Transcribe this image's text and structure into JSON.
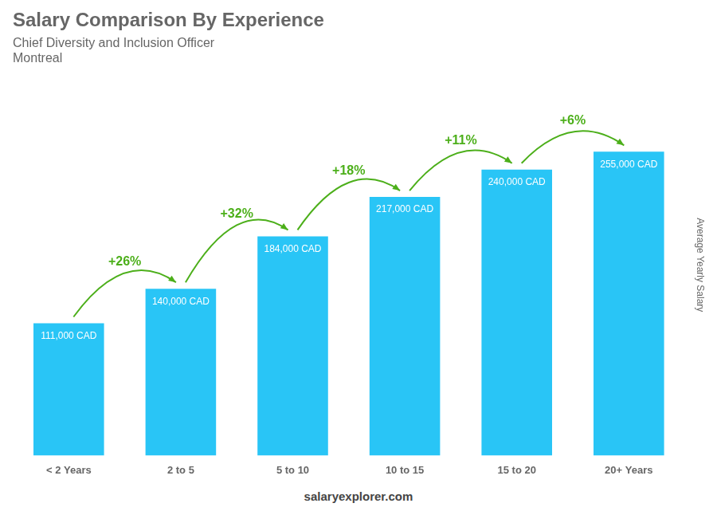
{
  "chart_data": {
    "type": "bar",
    "title": "Salary Comparison By Experience",
    "subtitle": [
      "Chief Diversity and Inclusion Officer",
      "Montreal"
    ],
    "y_label": "Average Yearly Salary",
    "categories": [
      "< 2 Years",
      "2 to 5",
      "5 to 10",
      "10 to 15",
      "15 to 20",
      "20+ Years"
    ],
    "values": [
      111000,
      140000,
      184000,
      217000,
      240000,
      255000
    ],
    "value_labels": [
      "111,000 CAD",
      "140,000 CAD",
      "184,000 CAD",
      "217,000 CAD",
      "240,000 CAD",
      "255,000 CAD"
    ],
    "data_labels": true,
    "annotations": [
      "+26%",
      "+32%",
      "+18%",
      "+11%",
      "+6%"
    ],
    "footer": "salaryexplorer.com",
    "color": "#29C5F6",
    "ylim": [
      0,
      320000
    ],
    "grid": false,
    "tick_labels": "x"
  }
}
